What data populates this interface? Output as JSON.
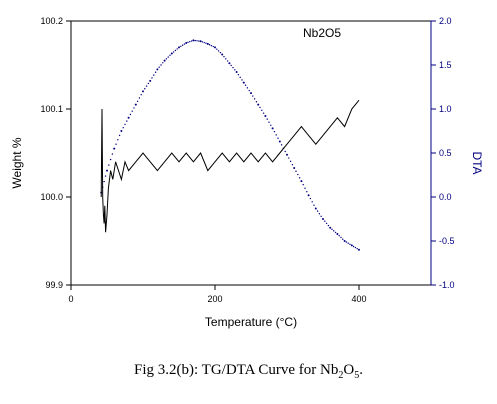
{
  "chart_data": {
    "type": "line",
    "annotation": "Nb2O5",
    "xlabel": "Temperature (°C)",
    "ylabel_left": "Weight %",
    "ylabel_right": "DTA",
    "xlim": [
      0,
      500
    ],
    "ylim_left": [
      99.9,
      100.2
    ],
    "ylim_right": [
      -1.0,
      2.0
    ],
    "x_ticks": [
      "0",
      "200",
      "400"
    ],
    "y_left_ticks": [
      "99.9",
      "100.0",
      "100.1",
      "100.2"
    ],
    "y_right_ticks": [
      "-1.0",
      "-0.5",
      "0.0",
      "0.5",
      "1.0",
      "1.5",
      "2.0"
    ],
    "grid": false,
    "series": [
      {
        "role": "TG",
        "axis": "left",
        "style": "line",
        "color": "#000000",
        "x": [
          42,
          43,
          44,
          45,
          46,
          47,
          48,
          50,
          52,
          55,
          58,
          62,
          66,
          70,
          75,
          80,
          90,
          100,
          110,
          120,
          130,
          140,
          150,
          160,
          170,
          180,
          190,
          200,
          210,
          220,
          230,
          240,
          250,
          260,
          270,
          280,
          290,
          300,
          310,
          320,
          330,
          340,
          350,
          360,
          370,
          380,
          390,
          400
        ],
        "y": [
          100.0,
          100.1,
          100.0,
          99.98,
          99.97,
          99.99,
          99.96,
          99.98,
          100.01,
          100.03,
          100.02,
          100.04,
          100.03,
          100.02,
          100.04,
          100.03,
          100.04,
          100.05,
          100.04,
          100.03,
          100.04,
          100.05,
          100.04,
          100.05,
          100.04,
          100.05,
          100.03,
          100.04,
          100.05,
          100.04,
          100.05,
          100.04,
          100.05,
          100.04,
          100.05,
          100.04,
          100.05,
          100.06,
          100.07,
          100.08,
          100.07,
          100.06,
          100.07,
          100.08,
          100.09,
          100.08,
          100.1,
          100.11
        ]
      },
      {
        "role": "DTA",
        "axis": "right",
        "style": "dotted",
        "color": "#000080",
        "x": [
          42,
          50,
          60,
          70,
          80,
          90,
          100,
          110,
          120,
          130,
          140,
          150,
          160,
          170,
          180,
          190,
          200,
          210,
          220,
          230,
          240,
          250,
          260,
          270,
          280,
          290,
          300,
          310,
          320,
          330,
          340,
          350,
          360,
          370,
          380,
          390,
          400
        ],
        "y": [
          0.05,
          0.3,
          0.55,
          0.75,
          0.9,
          1.05,
          1.2,
          1.32,
          1.45,
          1.55,
          1.63,
          1.7,
          1.75,
          1.78,
          1.77,
          1.74,
          1.7,
          1.62,
          1.52,
          1.42,
          1.3,
          1.18,
          1.05,
          0.92,
          0.78,
          0.63,
          0.48,
          0.33,
          0.18,
          0.02,
          -0.13,
          -0.25,
          -0.35,
          -0.42,
          -0.5,
          -0.55,
          -0.6
        ]
      }
    ]
  },
  "caption": {
    "prefix": "Fig 3.2(b): TG/DTA Curve for Nb",
    "sub1": "2",
    "mid": "O",
    "sub2": "5",
    "suffix": "."
  }
}
